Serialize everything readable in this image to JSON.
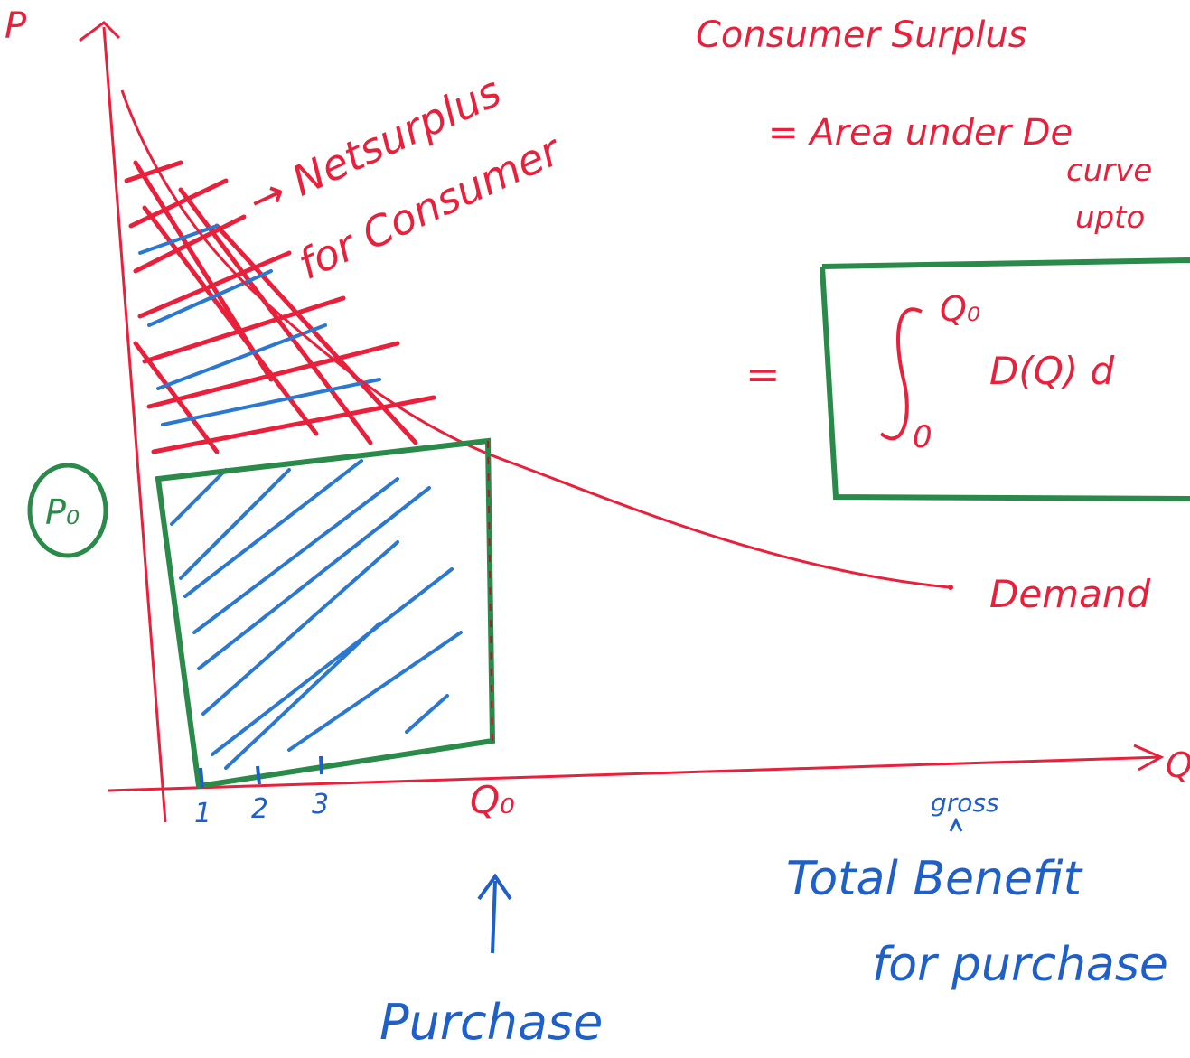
{
  "axes": {
    "y_label": "P",
    "x_label": "Q"
  },
  "heading": "Consumer Surplus",
  "definition": {
    "line1": "= Area under De",
    "line2": "curve",
    "line3": "upto"
  },
  "formula": {
    "equals": "=",
    "upper": "Q₀",
    "lower": "0",
    "integrand": "D(Q) d"
  },
  "annotations": {
    "net_surplus_line1": "→ Netsurplus",
    "net_surplus_line2": "for Consumer",
    "price": "P₀",
    "quantity": "Q₀",
    "demand": "Demand",
    "gross": "gross",
    "total_benefit_line1": "Total Benefit",
    "total_benefit_line2": "for purchase",
    "purchase": "Purchase"
  },
  "units": [
    "1",
    "2",
    "3"
  ]
}
